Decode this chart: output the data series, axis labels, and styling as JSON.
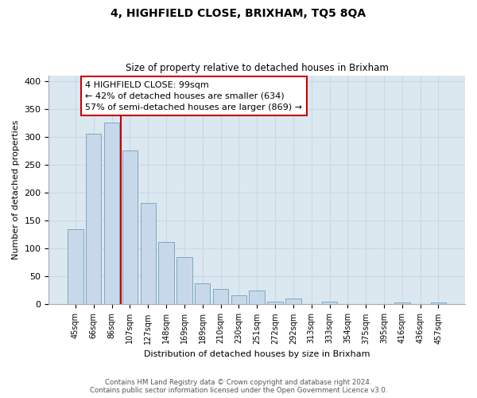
{
  "title": "4, HIGHFIELD CLOSE, BRIXHAM, TQ5 8QA",
  "subtitle": "Size of property relative to detached houses in Brixham",
  "xlabel": "Distribution of detached houses by size in Brixham",
  "ylabel": "Number of detached properties",
  "bar_labels": [
    "45sqm",
    "66sqm",
    "86sqm",
    "107sqm",
    "127sqm",
    "148sqm",
    "169sqm",
    "189sqm",
    "210sqm",
    "230sqm",
    "251sqm",
    "272sqm",
    "292sqm",
    "313sqm",
    "333sqm",
    "354sqm",
    "375sqm",
    "395sqm",
    "416sqm",
    "436sqm",
    "457sqm"
  ],
  "bar_values": [
    135,
    305,
    325,
    275,
    182,
    112,
    84,
    37,
    27,
    17,
    25,
    5,
    11,
    0,
    5,
    1,
    1,
    0,
    4,
    0,
    4
  ],
  "bar_color": "#c8d8eb",
  "bar_edge_color": "#7aaabf",
  "property_line_color": "#cc0000",
  "annotation_text": "4 HIGHFIELD CLOSE: 99sqm\n← 42% of detached houses are smaller (634)\n57% of semi-detached houses are larger (869) →",
  "annotation_box_color": "white",
  "annotation_box_edge_color": "#cc0000",
  "ylim": [
    0,
    410
  ],
  "yticks": [
    0,
    50,
    100,
    150,
    200,
    250,
    300,
    350,
    400
  ],
  "footnote": "Contains HM Land Registry data © Crown copyright and database right 2024.\nContains public sector information licensed under the Open Government Licence v3.0.",
  "grid_color": "#c8d8e8",
  "background_color": "#dce8f0"
}
